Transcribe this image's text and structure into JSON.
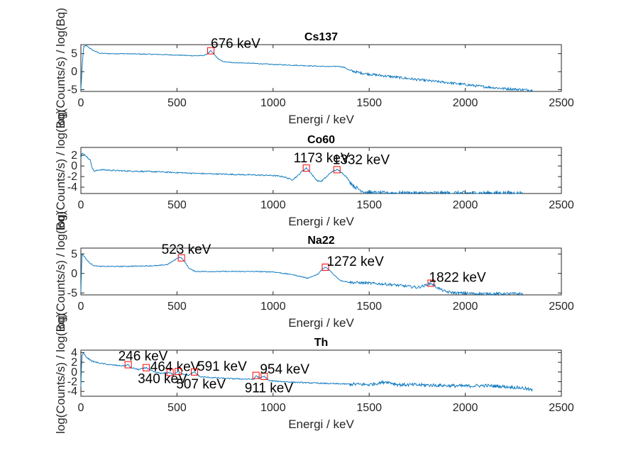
{
  "chart_data": [
    {
      "type": "line",
      "title": "Cs137",
      "xlabel": "Energi / keV",
      "ylabel": "log(Counts/s) / log(Bq)",
      "xlim": [
        0,
        2500
      ],
      "ylim": [
        -5.5,
        7.5
      ],
      "xticks": [
        0,
        500,
        1000,
        1500,
        2000,
        2500
      ],
      "yticks": [
        -5,
        0,
        5
      ],
      "color": "#0072BD",
      "series": [
        {
          "x": [
            0,
            8,
            15,
            30,
            60,
            100,
            150,
            200,
            300,
            400,
            500,
            550,
            600,
            640,
            660,
            676,
            690,
            710,
            730,
            750,
            800,
            900,
            1000,
            1100,
            1200,
            1300,
            1340,
            1370,
            1400,
            1450,
            1500,
            1600,
            1700,
            1800,
            1900,
            2000,
            2100,
            2200,
            2300,
            2350
          ],
          "y": [
            -5,
            2.5,
            7.0,
            7.2,
            6.0,
            5.1,
            5.0,
            5.0,
            4.9,
            4.8,
            4.6,
            4.5,
            4.4,
            4.5,
            5.0,
            5.8,
            5.0,
            3.8,
            3.0,
            2.7,
            2.5,
            2.3,
            2.0,
            1.8,
            1.6,
            1.4,
            1.5,
            1.2,
            0.3,
            -0.3,
            -0.7,
            -1.3,
            -1.9,
            -2.5,
            -3.0,
            -3.6,
            -4.2,
            -4.7,
            -5.0,
            -5.2
          ]
        }
      ],
      "peaks": [
        {
          "x": 676,
          "y": 5.8,
          "label": "676 keV"
        }
      ]
    },
    {
      "type": "line",
      "title": "Co60",
      "xlabel": "Energi / keV",
      "ylabel": "log(Counts/s) / log(Bq)",
      "xlim": [
        0,
        2500
      ],
      "ylim": [
        -5.2,
        3.5
      ],
      "xticks": [
        0,
        500,
        1000,
        1500,
        2000,
        2500
      ],
      "yticks": [
        -4,
        -2,
        0,
        2
      ],
      "color": "#0072BD",
      "series": [
        {
          "x": [
            0,
            5,
            15,
            30,
            50,
            60,
            70,
            100,
            200,
            400,
            600,
            800,
            1000,
            1050,
            1100,
            1130,
            1150,
            1173,
            1190,
            1210,
            1230,
            1250,
            1280,
            1300,
            1332,
            1350,
            1380,
            1400,
            1420,
            1450,
            1480,
            1500,
            1550,
            1600,
            1700,
            1800,
            2000,
            2200,
            2300
          ],
          "y": [
            1.5,
            2.5,
            2.2,
            1.8,
            1.0,
            -0.5,
            -1.0,
            -0.7,
            -0.9,
            -1.1,
            -1.4,
            -1.6,
            -1.8,
            -2.0,
            -2.6,
            -1.8,
            -1.0,
            -0.4,
            -1.0,
            -2.0,
            -2.8,
            -2.9,
            -2.0,
            -1.2,
            -0.7,
            -1.0,
            -2.0,
            -3.0,
            -3.8,
            -4.5,
            -4.9,
            -5.0,
            -5.1,
            -5.1,
            -5.1,
            -5.1,
            -5.1,
            -5.1,
            -5.1
          ]
        }
      ],
      "peaks": [
        {
          "x": 1173,
          "y": -0.4,
          "label": "1173 keV"
        },
        {
          "x": 1332,
          "y": -0.7,
          "label": "1332 keV"
        }
      ]
    },
    {
      "type": "line",
      "title": "Na22",
      "xlabel": "Energi / keV",
      "ylabel": "log(Counts/s) / log(Bq)",
      "xlim": [
        0,
        2500
      ],
      "ylim": [
        -5.5,
        6.5
      ],
      "xticks": [
        0,
        500,
        1000,
        1500,
        2000,
        2500
      ],
      "yticks": [
        -5,
        0,
        5
      ],
      "color": "#0072BD",
      "series": [
        {
          "x": [
            0,
            5,
            15,
            30,
            50,
            70,
            100,
            200,
            300,
            400,
            450,
            490,
            510,
            523,
            540,
            560,
            580,
            600,
            700,
            800,
            900,
            1000,
            1100,
            1180,
            1230,
            1260,
            1272,
            1290,
            1320,
            1350,
            1400,
            1500,
            1600,
            1700,
            1750,
            1790,
            1822,
            1850,
            1880,
            1900,
            1950,
            2000,
            2100,
            2200,
            2300
          ],
          "y": [
            -5,
            5,
            4.5,
            3.5,
            2.5,
            2.0,
            1.8,
            1.8,
            1.9,
            2.0,
            2.3,
            3.5,
            4.2,
            4.0,
            3.0,
            1.5,
            0.8,
            0.5,
            0.5,
            0.5,
            0.5,
            0.4,
            -0.3,
            -1.2,
            -0.3,
            1.2,
            1.6,
            1.0,
            -0.5,
            -1.8,
            -2.3,
            -2.5,
            -2.8,
            -3.3,
            -3.6,
            -3.1,
            -2.5,
            -3.5,
            -4.3,
            -4.7,
            -5.0,
            -5.1,
            -5.2,
            -5.2,
            -5.2
          ]
        }
      ],
      "peaks": [
        {
          "x": 523,
          "y": 4.0,
          "label": "523 keV"
        },
        {
          "x": 1272,
          "y": 1.6,
          "label": "1272 keV"
        },
        {
          "x": 1822,
          "y": -2.5,
          "label": "1822 keV"
        }
      ]
    },
    {
      "type": "line",
      "title": "Th",
      "xlabel": "Energi / keV",
      "ylabel": "log(Counts/s) / log(Bq)",
      "xlim": [
        0,
        2500
      ],
      "ylim": [
        -5.0,
        4.5
      ],
      "xticks": [
        0,
        500,
        1000,
        1500,
        2000,
        2500
      ],
      "yticks": [
        -4,
        -2,
        0,
        2,
        4
      ],
      "color": "#0072BD",
      "series": [
        {
          "x": [
            0,
            5,
            15,
            30,
            60,
            100,
            150,
            200,
            230,
            246,
            260,
            300,
            340,
            380,
            420,
            464,
            480,
            507,
            530,
            560,
            591,
            620,
            700,
            800,
            900,
            911,
            930,
            954,
            980,
            1100,
            1300,
            1500,
            1590,
            1650,
            1800,
            1900,
            2000,
            2100,
            2200,
            2300,
            2350
          ],
          "y": [
            -3,
            3.5,
            3.8,
            3.0,
            2.2,
            1.8,
            1.5,
            1.3,
            1.3,
            1.5,
            0.9,
            0.5,
            0.9,
            0.0,
            -0.3,
            -0.1,
            -0.6,
            0.1,
            -0.4,
            -0.7,
            0.0,
            -1.0,
            -1.2,
            -1.4,
            -1.5,
            -0.7,
            -1.3,
            -0.9,
            -1.8,
            -2.1,
            -2.4,
            -2.6,
            -2.0,
            -2.6,
            -2.7,
            -2.8,
            -2.9,
            -2.8,
            -3.0,
            -3.3,
            -3.8
          ]
        }
      ],
      "peaks": [
        {
          "x": 246,
          "y": 1.5,
          "label": "246 keV"
        },
        {
          "x": 340,
          "y": 0.9,
          "label": "340 keV"
        },
        {
          "x": 464,
          "y": -0.1,
          "label": "464 keV"
        },
        {
          "x": 507,
          "y": 0.1,
          "label": "507 keV"
        },
        {
          "x": 591,
          "y": 0.0,
          "label": "591 keV"
        },
        {
          "x": 911,
          "y": -0.7,
          "label": "911 keV"
        },
        {
          "x": 954,
          "y": -0.9,
          "label": "954 keV"
        }
      ]
    }
  ]
}
